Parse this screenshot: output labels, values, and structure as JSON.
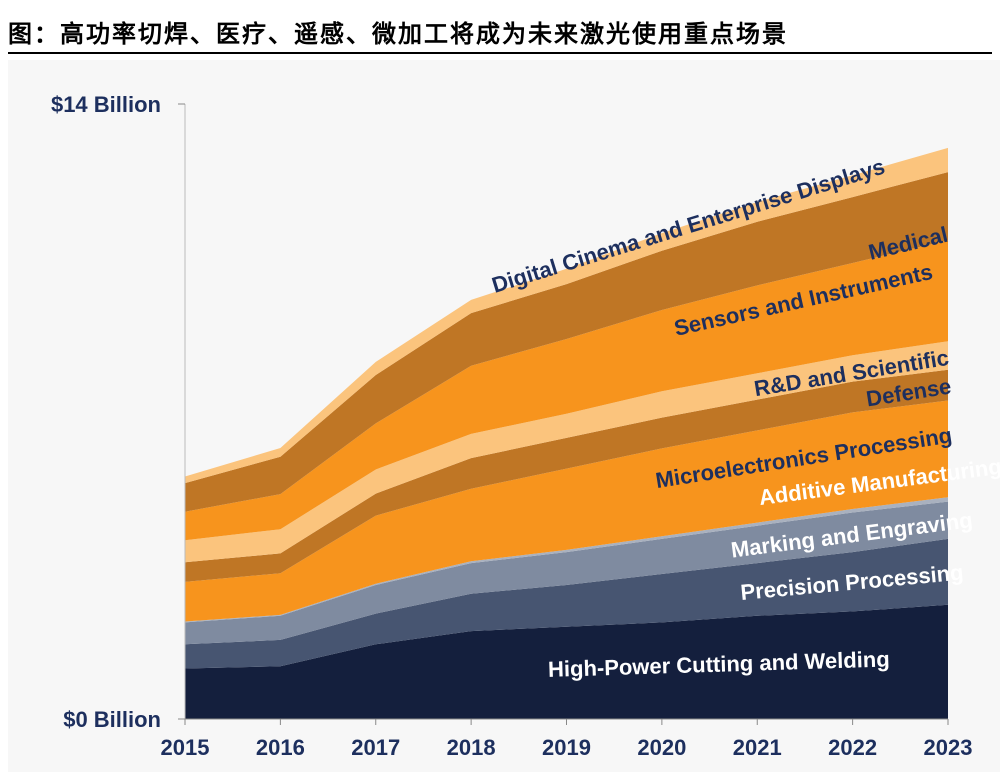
{
  "header": {
    "title": "图：高功率切焊、医疗、遥感、微加工将成为未来激光使用重点场景"
  },
  "chart_data": {
    "type": "area",
    "stacked": true,
    "x": [
      "2015",
      "2016",
      "2017",
      "2018",
      "2019",
      "2020",
      "2021",
      "2022",
      "2023"
    ],
    "ylim": [
      0,
      14
    ],
    "yticks": [
      {
        "value": 0,
        "label": "$0 Billion"
      },
      {
        "value": 14,
        "label": "$14 Billion"
      }
    ],
    "grid": false,
    "legend": "inline labels",
    "series": [
      {
        "name": "High-Power Cutting and Welding",
        "color": "#141f3d",
        "label_color": "#ffffff",
        "values": [
          1.15,
          1.2,
          1.7,
          2.0,
          2.1,
          2.2,
          2.35,
          2.45,
          2.6
        ]
      },
      {
        "name": "Precision Processing",
        "color": "#475571",
        "label_color": "#ffffff",
        "values": [
          0.55,
          0.6,
          0.7,
          0.85,
          0.95,
          1.1,
          1.2,
          1.35,
          1.5
        ]
      },
      {
        "name": "Marking and Engraving",
        "color": "#7f8ba0",
        "label_color": "#ffffff",
        "values": [
          0.5,
          0.55,
          0.65,
          0.7,
          0.75,
          0.8,
          0.85,
          0.9,
          0.85
        ]
      },
      {
        "name": "Additive Manufacturing",
        "color": "#a9b1bf",
        "label_color": "#ffffff",
        "values": [
          0.02,
          0.02,
          0.03,
          0.04,
          0.05,
          0.06,
          0.07,
          0.08,
          0.1
        ]
      },
      {
        "name": "Microelectronics Processing",
        "color": "#f7941d",
        "label_color": "#1d2f5e",
        "values": [
          0.9,
          0.95,
          1.55,
          1.65,
          1.85,
          2.0,
          2.1,
          2.2,
          2.2
        ]
      },
      {
        "name": "Defense",
        "color": "#bf7625",
        "label_color": "#1d2f5e",
        "values": [
          0.45,
          0.45,
          0.5,
          0.7,
          0.7,
          0.7,
          0.7,
          0.7,
          0.7
        ]
      },
      {
        "name": "R&D and Scientific",
        "color": "#fbc47d",
        "label_color": "#1d2f5e",
        "values": [
          0.5,
          0.55,
          0.55,
          0.55,
          0.55,
          0.6,
          0.6,
          0.6,
          0.65
        ]
      },
      {
        "name": "Sensors and Instruments",
        "color": "#f7941d",
        "label_color": "#1d2f5e",
        "values": [
          0.65,
          0.8,
          1.05,
          1.55,
          1.7,
          1.85,
          2.0,
          2.1,
          2.3
        ]
      },
      {
        "name": "Medical",
        "color": "#bf7625",
        "label_color": "#1d2f5e",
        "values": [
          0.65,
          0.85,
          1.1,
          1.2,
          1.25,
          1.35,
          1.45,
          1.5,
          1.55
        ]
      },
      {
        "name": "Digital Cinema and Enterprise Displays",
        "color": "#fbc47d",
        "label_color": "#1d2f5e",
        "values": [
          0.15,
          0.2,
          0.3,
          0.3,
          0.35,
          0.4,
          0.45,
          0.5,
          0.55
        ]
      }
    ]
  }
}
